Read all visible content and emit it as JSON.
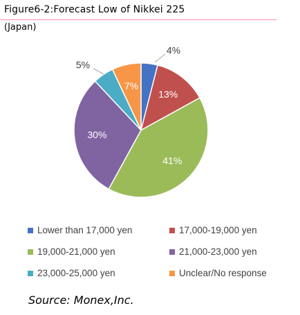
{
  "header": {
    "title": "Figure6-2:Forecast Low of Nikkei 225",
    "subtitle": "(Japan)"
  },
  "source": "Source: Monex,Inc.",
  "colors": {
    "title_rule": "#ef8fb6"
  },
  "chart_data": {
    "type": "pie",
    "title": "Figure6-2:Forecast Low of Nikkei 225",
    "start_angle_deg": 0,
    "direction": "clockwise",
    "legend_position": "bottom",
    "slices": [
      {
        "label": "Lower than 17,000 yen",
        "value": 4,
        "display": "4%",
        "color": "#4472c4"
      },
      {
        "label": "17,000-19,000 yen",
        "value": 13,
        "display": "13%",
        "color": "#c0504d"
      },
      {
        "label": "19,000-21,000 yen",
        "value": 41,
        "display": "41%",
        "color": "#9bbb59"
      },
      {
        "label": "21,000-23,000 yen",
        "value": 30,
        "display": "30%",
        "color": "#8064a2"
      },
      {
        "label": "23,000-25,000 yen",
        "value": 5,
        "display": "5%",
        "color": "#4bacc6"
      },
      {
        "label": "Unclear/No response",
        "value": 7,
        "display": "7%",
        "color": "#f79646"
      }
    ]
  }
}
